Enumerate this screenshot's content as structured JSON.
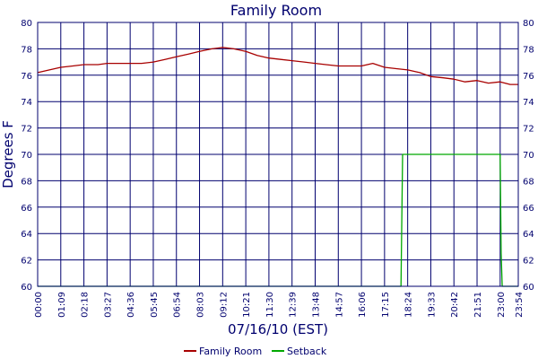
{
  "chart_data": {
    "type": "line",
    "title": "Family Room",
    "xlabel": "07/16/10 (EST)",
    "ylabel": "Degrees F",
    "ylim": [
      60,
      80
    ],
    "yticks": [
      60,
      62,
      64,
      66,
      68,
      70,
      72,
      74,
      76,
      78,
      80
    ],
    "xticks": [
      "00:00",
      "01:09",
      "02:18",
      "03:27",
      "04:36",
      "05:45",
      "06:54",
      "08:03",
      "09:12",
      "10:21",
      "11:30",
      "12:39",
      "13:48",
      "14:57",
      "16:06",
      "17:15",
      "18:24",
      "19:33",
      "20:42",
      "21:51",
      "23:00",
      "23:54"
    ],
    "grid": true,
    "legend_position": "bottom",
    "colors": {
      "axis": "#00006e",
      "grid": "#00006e",
      "background": "#ffffff"
    },
    "series": [
      {
        "name": "Family Room",
        "color": "#a80000",
        "points": [
          [
            "00:00",
            76.2
          ],
          [
            "00:35",
            76.4
          ],
          [
            "01:09",
            76.6
          ],
          [
            "01:45",
            76.7
          ],
          [
            "02:18",
            76.8
          ],
          [
            "03:00",
            76.8
          ],
          [
            "03:27",
            76.9
          ],
          [
            "04:00",
            76.9
          ],
          [
            "04:36",
            76.9
          ],
          [
            "05:10",
            76.9
          ],
          [
            "05:45",
            77.0
          ],
          [
            "06:20",
            77.2
          ],
          [
            "06:54",
            77.4
          ],
          [
            "07:30",
            77.6
          ],
          [
            "08:03",
            77.8
          ],
          [
            "08:40",
            78.0
          ],
          [
            "09:12",
            78.1
          ],
          [
            "09:45",
            78.0
          ],
          [
            "10:21",
            77.8
          ],
          [
            "10:55",
            77.5
          ],
          [
            "11:30",
            77.3
          ],
          [
            "12:05",
            77.2
          ],
          [
            "12:39",
            77.1
          ],
          [
            "13:15",
            77.0
          ],
          [
            "13:48",
            76.9
          ],
          [
            "14:20",
            76.8
          ],
          [
            "14:57",
            76.7
          ],
          [
            "15:30",
            76.7
          ],
          [
            "16:06",
            76.7
          ],
          [
            "16:40",
            76.9
          ],
          [
            "17:15",
            76.6
          ],
          [
            "17:50",
            76.5
          ],
          [
            "18:24",
            76.4
          ],
          [
            "19:00",
            76.2
          ],
          [
            "19:33",
            75.9
          ],
          [
            "20:10",
            75.8
          ],
          [
            "20:42",
            75.7
          ],
          [
            "21:15",
            75.5
          ],
          [
            "21:51",
            75.6
          ],
          [
            "22:25",
            75.4
          ],
          [
            "23:00",
            75.5
          ],
          [
            "23:30",
            75.3
          ],
          [
            "23:54",
            75.3
          ]
        ]
      },
      {
        "name": "Setback",
        "color": "#00a800",
        "points": [
          [
            "00:00",
            60
          ],
          [
            "18:04",
            60
          ],
          [
            "18:09",
            70
          ],
          [
            "23:00",
            70
          ],
          [
            "23:03",
            62.5
          ],
          [
            "23:06",
            60
          ],
          [
            "23:54",
            60
          ]
        ]
      }
    ]
  }
}
